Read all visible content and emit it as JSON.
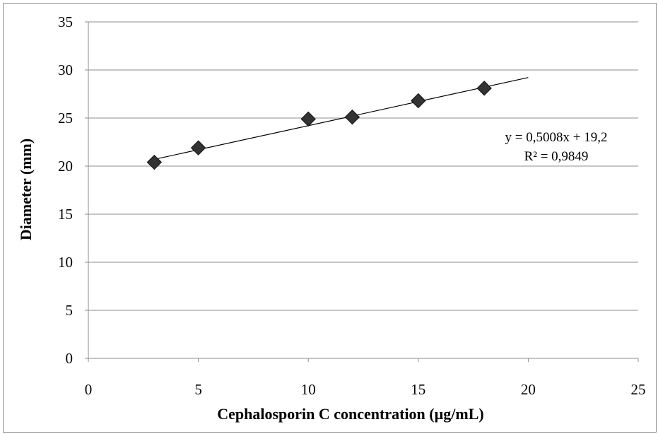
{
  "chart_data": {
    "type": "scatter",
    "title": "",
    "xlabel": "Cephalosporin C concentration (µg/mL)",
    "ylabel": "Diameter (mm)",
    "xlim": [
      0,
      25
    ],
    "ylim": [
      0,
      35
    ],
    "x_ticks": [
      "0",
      "5",
      "10",
      "15",
      "20",
      "25"
    ],
    "y_ticks": [
      "0",
      "5",
      "10",
      "15",
      "20",
      "25",
      "30",
      "35"
    ],
    "grid": "horizontal",
    "series": [
      {
        "marker": "diamond",
        "color": "#333333",
        "points": [
          {
            "x": 3,
            "y": 20.4
          },
          {
            "x": 5,
            "y": 21.9
          },
          {
            "x": 10,
            "y": 24.9
          },
          {
            "x": 12,
            "y": 25.1
          },
          {
            "x": 15,
            "y": 26.8
          },
          {
            "x": 18,
            "y": 28.1
          }
        ]
      }
    ],
    "trendline": {
      "type": "linear",
      "slope": 0.5008,
      "intercept": 19.2,
      "x_range": [
        3,
        20
      ],
      "equation_text": "y = 0,5008x + 19,2",
      "r2_text": "R² = 0,9849",
      "label_position": "right"
    }
  }
}
